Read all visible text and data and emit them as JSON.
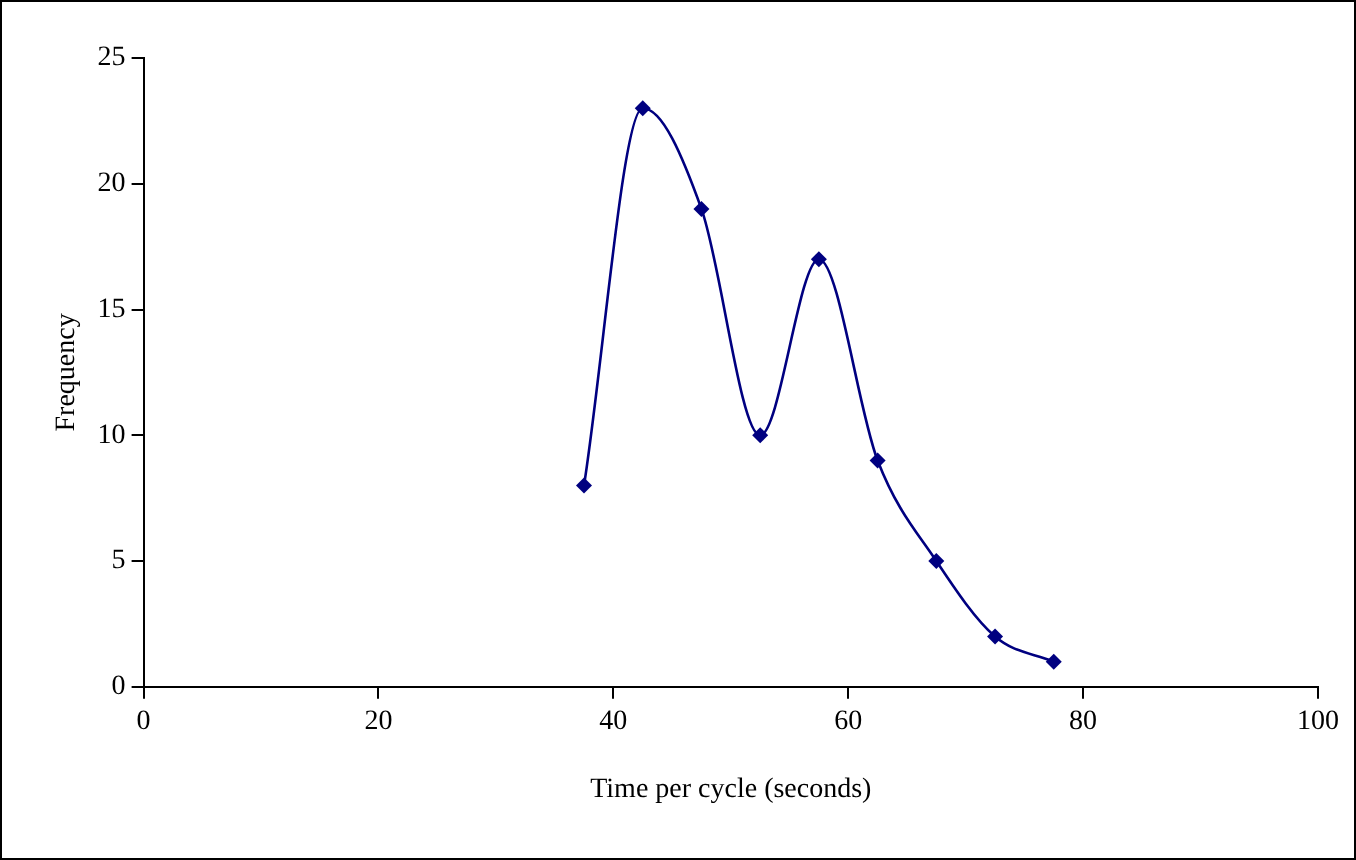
{
  "chart_data": {
    "type": "line",
    "xlabel": "Time per cycle (seconds)",
    "ylabel": "Frequency",
    "x": [
      37.5,
      42.5,
      47.5,
      52.5,
      57.5,
      62.5,
      67.5,
      72.5,
      77.5
    ],
    "values": [
      8,
      23,
      19,
      10,
      17,
      9,
      5,
      2,
      1
    ],
    "color": "#000080",
    "marker": "diamond",
    "xlim": [
      0,
      100
    ],
    "xticks": [
      0,
      20,
      40,
      60,
      80,
      100
    ],
    "ylim": [
      0,
      25
    ],
    "yticks": [
      0,
      5,
      10,
      15,
      20,
      25
    ]
  }
}
